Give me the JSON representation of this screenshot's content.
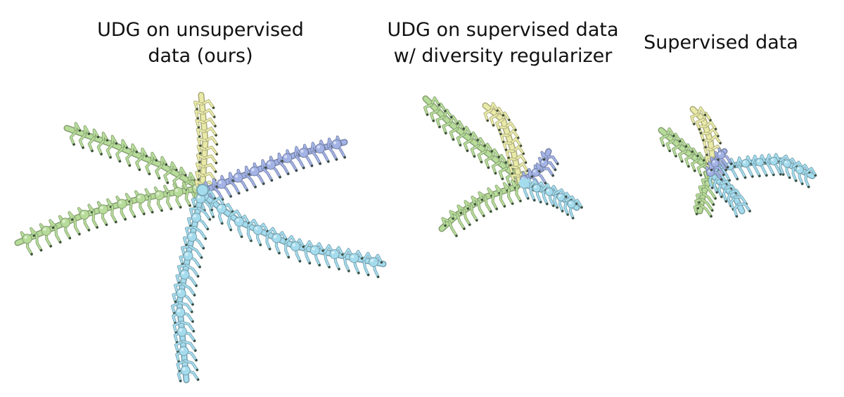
{
  "captions": [
    {
      "lines": [
        "UDG on unsupervised",
        "data (ours)"
      ]
    },
    {
      "lines": [
        "UDG on supervised data",
        "w/ diversity regularizer"
      ]
    },
    {
      "lines": [
        "Supervised data"
      ]
    }
  ],
  "colors": {
    "green": "#b7dc9a",
    "yellow": "#e9eaa8",
    "blue": "#a3b3e6",
    "cyan": "#a4dcee",
    "limb_dark": "#3a4a3a"
  }
}
